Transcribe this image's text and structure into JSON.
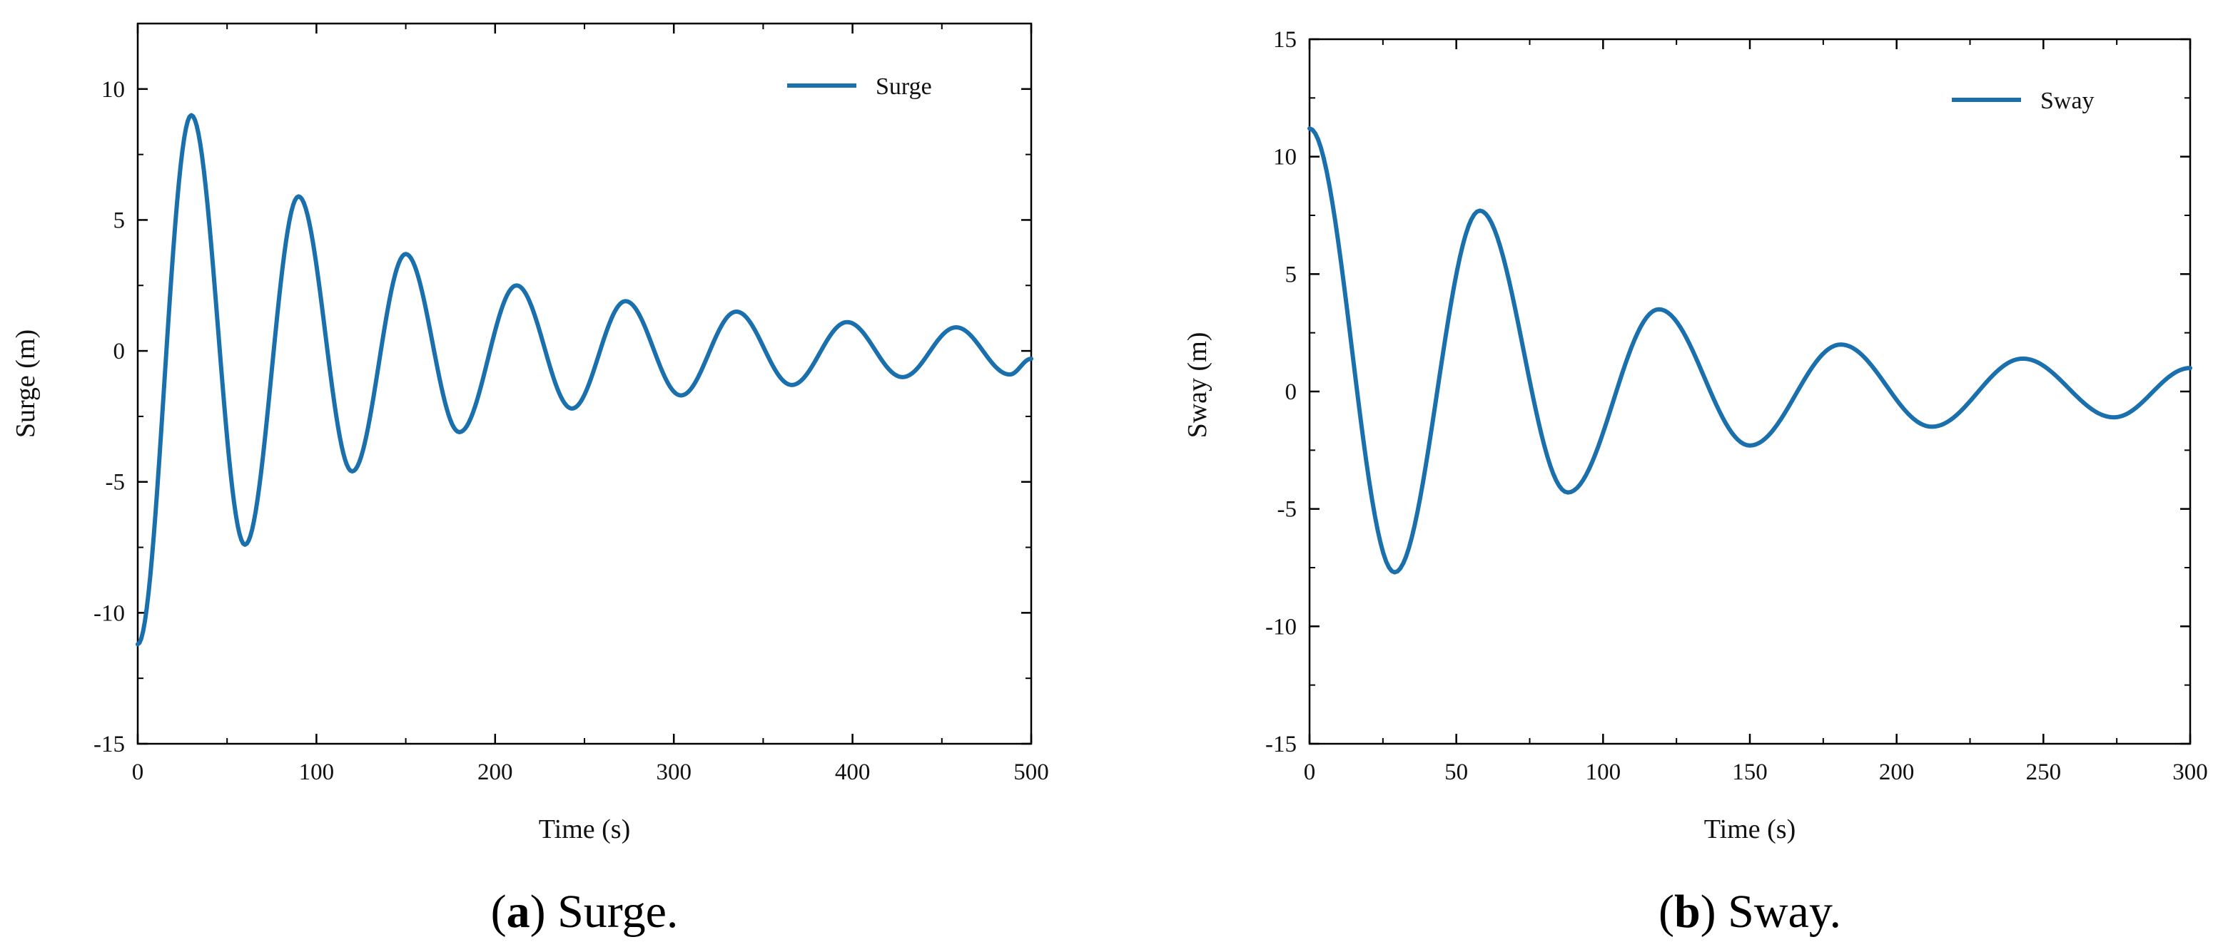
{
  "chart_data": [
    {
      "type": "line",
      "caption_letter": "a",
      "caption_text": ") Surge.",
      "caption_open": "(",
      "xlabel": "Time (s)",
      "ylabel": "Surge (m)",
      "xlim": [
        0,
        500
      ],
      "ylim": [
        -15,
        12.5
      ],
      "xticks": [
        "0",
        "100",
        "200",
        "300",
        "400",
        "500"
      ],
      "yticks": [
        "-15",
        "-10",
        "-5",
        "0",
        "5",
        "10"
      ],
      "grid": false,
      "legend_position": "top-right",
      "line_color": "#1a6fad",
      "series": [
        {
          "name": "Surge",
          "x": [
            0,
            30,
            60,
            90,
            120,
            150,
            180,
            212,
            243,
            273,
            304,
            335,
            366,
            397,
            428,
            458,
            488,
            500
          ],
          "y": [
            -11.2,
            9.0,
            -7.4,
            5.9,
            -4.6,
            3.7,
            -3.1,
            2.5,
            -2.2,
            1.9,
            -1.7,
            1.5,
            -1.3,
            1.1,
            -1.0,
            0.9,
            -0.9,
            -0.3
          ]
        }
      ]
    },
    {
      "type": "line",
      "caption_letter": "b",
      "caption_text": ") Sway.",
      "caption_open": "(",
      "xlabel": "Time (s)",
      "ylabel": "Sway (m)",
      "xlim": [
        0,
        300
      ],
      "ylim": [
        -15,
        15
      ],
      "xticks": [
        "0",
        "50",
        "100",
        "150",
        "200",
        "250",
        "300"
      ],
      "yticks": [
        "-15",
        "-10",
        "-5",
        "0",
        "5",
        "10",
        "15"
      ],
      "grid": false,
      "legend_position": "top-right",
      "line_color": "#1a6fad",
      "series": [
        {
          "name": "Sway",
          "x": [
            0,
            29,
            58,
            88,
            119,
            150,
            181,
            212,
            243,
            274,
            300
          ],
          "y": [
            11.2,
            -7.7,
            7.7,
            -4.3,
            3.5,
            -2.3,
            2.0,
            -1.5,
            1.4,
            -1.1,
            1.0
          ]
        }
      ]
    }
  ]
}
